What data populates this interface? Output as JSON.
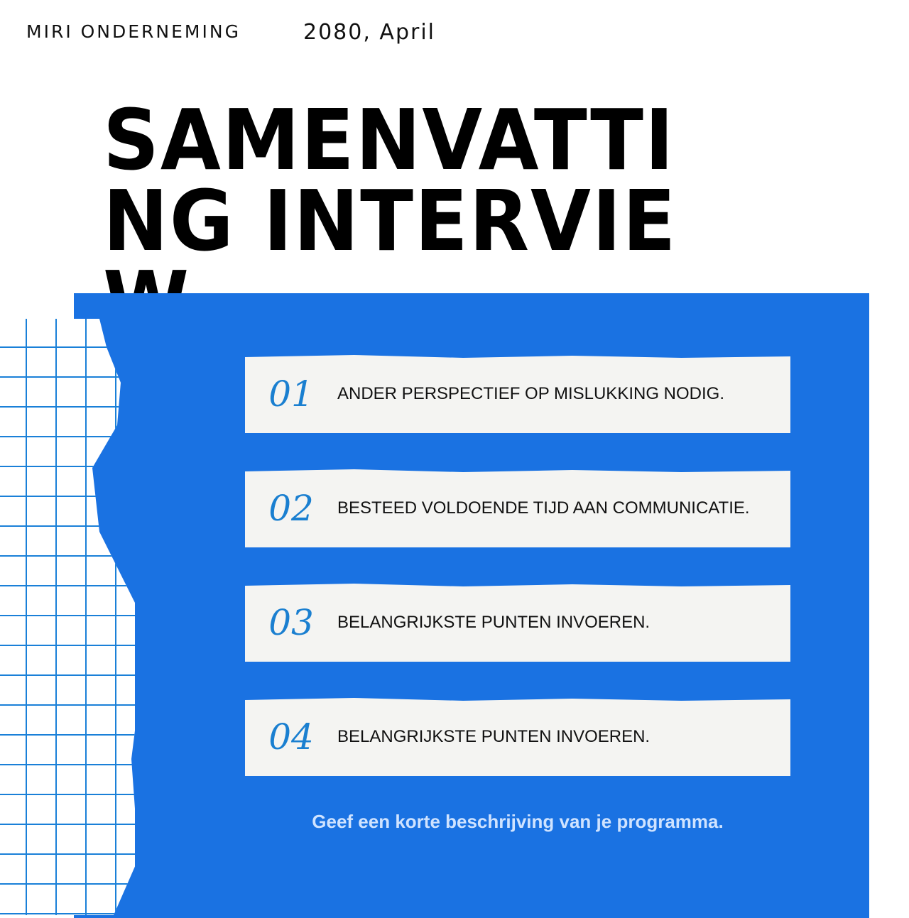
{
  "header": {
    "brand": "MIRI ONDERNEMING",
    "date": "2080, April"
  },
  "title": "SAMENVATTING INTERVIEW",
  "items": [
    {
      "number": "01",
      "text": "ANDER PERSPECTIEF OP MISLUKKING NODIG."
    },
    {
      "number": "02",
      "text": "BESTEED VOLDOENDE TIJD AAN COMMUNICATIE."
    },
    {
      "number": "03",
      "text": "BELANGRIJKSTE PUNTEN INVOEREN."
    },
    {
      "number": "04",
      "text": "BELANGRIJKSTE PUNTEN INVOEREN."
    }
  ],
  "footer": "Geef een korte beschrijving van je programma.",
  "colors": {
    "panel": "#1a72e2",
    "grid": "#1a80d8",
    "number": "#1a7fd0"
  }
}
